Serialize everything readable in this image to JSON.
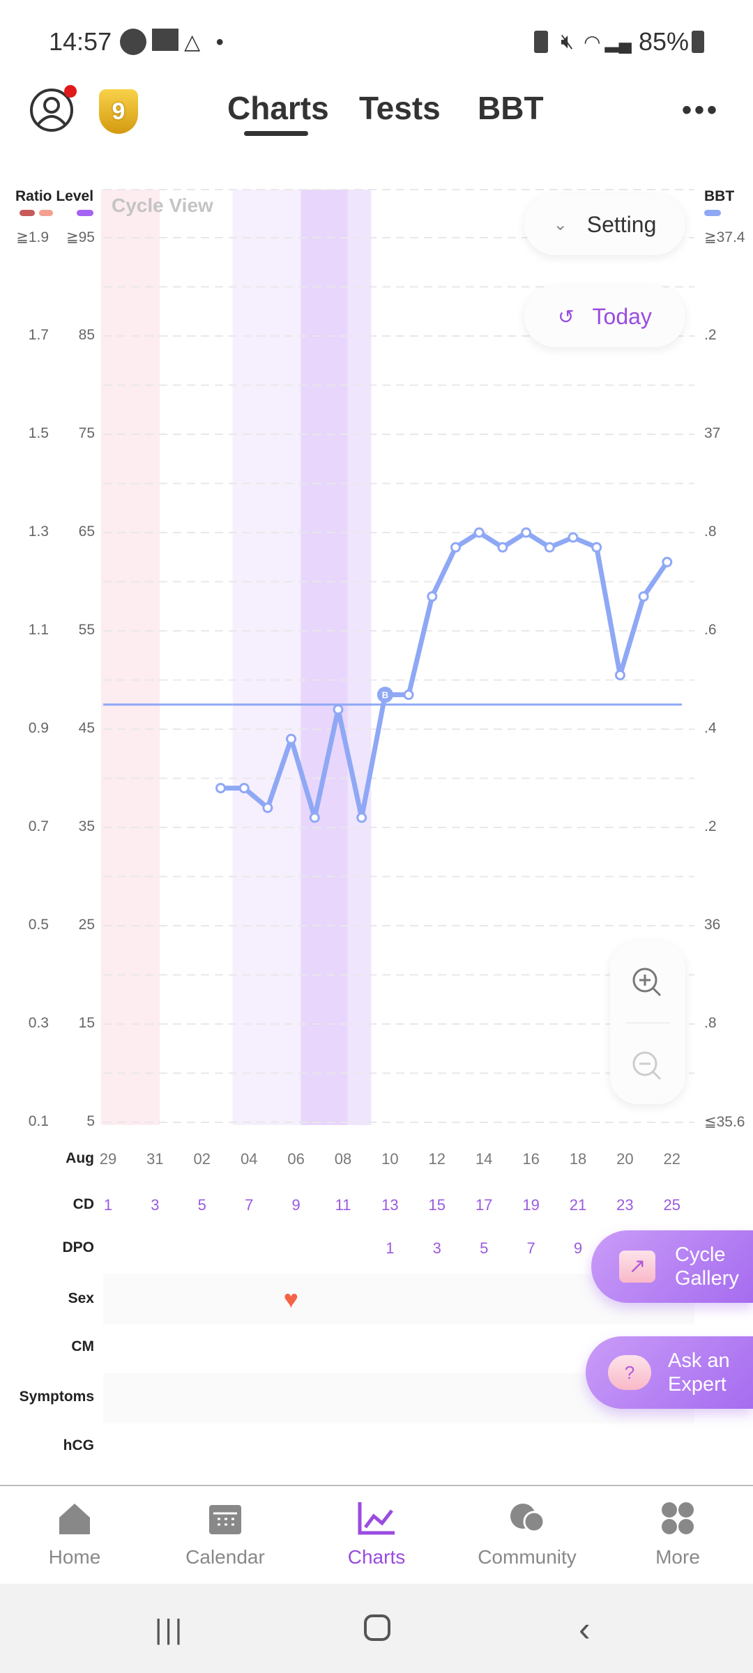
{
  "status_bar": {
    "time": "14:57",
    "battery": "85%"
  },
  "header": {
    "tabs": [
      "Charts",
      "Tests",
      "BBT"
    ],
    "active_tab": "Charts",
    "badge_level": "9"
  },
  "chart_controls": {
    "setting_label": "Setting",
    "today_label": "Today"
  },
  "legend": {
    "left_title": "Ratio Level",
    "right_title": "BBT",
    "view_label": "Cycle View",
    "colors": {
      "ratio_high": "#c85a5a",
      "ratio_low": "#f5a090",
      "level": "#a463f2",
      "bbt": "#8fa8f5"
    }
  },
  "chart_data": {
    "type": "line",
    "title": "Cycle View",
    "ratio_ticks": [
      "≧1.9",
      "1.7",
      "1.5",
      "1.3",
      "1.1",
      "0.9",
      "0.7",
      "0.5",
      "0.3",
      "0.1"
    ],
    "level_ticks": [
      "≧95",
      "85",
      "75",
      "65",
      "55",
      "45",
      "35",
      "25",
      "15",
      "5"
    ],
    "bbt_ticks": [
      "≧37.4",
      ".2",
      "37",
      ".8",
      ".6",
      ".4",
      ".2",
      "36",
      ".8",
      "≦35.6"
    ],
    "bbt_range": [
      35.6,
      37.4
    ],
    "series": [
      {
        "name": "BBT",
        "cycle_days": [
          6,
          7,
          8,
          9,
          10,
          11,
          12,
          13,
          14,
          15,
          16,
          17,
          18,
          19,
          20,
          21,
          22,
          23,
          24,
          25
        ],
        "values": [
          36.28,
          36.28,
          36.24,
          36.38,
          36.22,
          36.44,
          36.22,
          36.47,
          36.47,
          36.67,
          36.77,
          36.8,
          36.77,
          36.8,
          36.77,
          36.79,
          36.77,
          36.51,
          36.67,
          36.74
        ]
      }
    ],
    "coverline": 36.45,
    "coverline_marker": {
      "day": 13,
      "label": "B"
    },
    "bands": [
      {
        "type": "period",
        "from": 0.7,
        "to": 3.2,
        "color": "#fdecf0"
      },
      {
        "type": "fertile-low",
        "from": 6.3,
        "to": 9.2,
        "color": "#f6effd"
      },
      {
        "type": "fertile-peak",
        "from": 9.2,
        "to": 11.2,
        "color": "#e8d6fc"
      },
      {
        "type": "fertile-high",
        "from": 11.2,
        "to": 12.2,
        "color": "#efe5fd"
      }
    ]
  },
  "rows": {
    "month": "Aug",
    "dates": [
      "29",
      "31",
      "02",
      "04",
      "06",
      "08",
      "10",
      "12",
      "14",
      "16",
      "18",
      "20",
      "22"
    ],
    "cd_label": "CD",
    "cd": [
      "1",
      "3",
      "5",
      "7",
      "9",
      "11",
      "13",
      "15",
      "17",
      "19",
      "21",
      "23",
      "25"
    ],
    "dpo_label": "DPO",
    "dpo": [
      "1",
      "3",
      "5",
      "7",
      "9"
    ],
    "sex_label": "Sex",
    "sex_day": 9,
    "cm_label": "CM",
    "symptoms_label": "Symptoms",
    "hcg_label": "hCG"
  },
  "fabs": {
    "gallery": "Cycle Gallery",
    "expert": "Ask an Expert"
  },
  "nav": [
    {
      "label": "Home"
    },
    {
      "label": "Calendar"
    },
    {
      "label": "Charts"
    },
    {
      "label": "Community"
    },
    {
      "label": "More"
    }
  ],
  "active_nav": "Charts"
}
